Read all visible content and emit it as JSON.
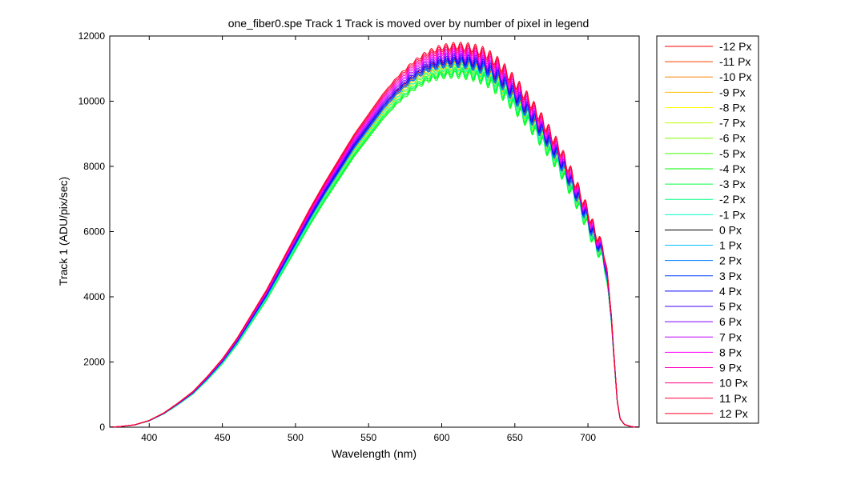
{
  "chart_data": {
    "type": "line",
    "title": "one_fiber0.spe   Track 1     Track is moved over by number of pixel in legend",
    "xlabel": "Wavelength (nm)",
    "ylabel": "Track 1 (ADU/pix/sec)",
    "xlim": [
      373,
      735
    ],
    "ylim": [
      0,
      12000
    ],
    "xticks": [
      400,
      450,
      500,
      550,
      600,
      650,
      700
    ],
    "yticks": [
      0,
      2000,
      4000,
      6000,
      8000,
      10000,
      12000
    ],
    "grid": false,
    "legend_position": "outside-right",
    "base_profile": {
      "x": [
        373,
        380,
        390,
        400,
        410,
        420,
        430,
        440,
        450,
        460,
        470,
        480,
        490,
        500,
        510,
        520,
        530,
        540,
        550,
        560,
        570,
        580,
        590,
        600,
        610,
        620,
        630,
        640,
        650,
        660,
        670,
        680,
        690,
        700,
        705,
        710,
        713,
        716,
        718,
        720,
        722,
        725,
        730,
        735
      ],
      "y": [
        0,
        20,
        70,
        200,
        420,
        720,
        1050,
        1500,
        2000,
        2600,
        3300,
        4000,
        4800,
        5600,
        6400,
        7150,
        7850,
        8550,
        9150,
        9750,
        10250,
        10650,
        10950,
        11100,
        11150,
        11100,
        10950,
        10600,
        10100,
        9550,
        8900,
        8200,
        7300,
        6300,
        5700,
        5300,
        4600,
        3300,
        2000,
        800,
        250,
        80,
        15,
        0
      ]
    },
    "series": [
      {
        "name": "-12 Px",
        "color": "#ff0000",
        "scale": 1.01
      },
      {
        "name": "-11 Px",
        "color": "#ff4000",
        "scale": 1.005
      },
      {
        "name": "-10 Px",
        "color": "#ff8000",
        "scale": 1.0
      },
      {
        "name": "-9 Px",
        "color": "#ffbf00",
        "scale": 0.995
      },
      {
        "name": "-8 Px",
        "color": "#ffff00",
        "scale": 0.99
      },
      {
        "name": "-7 Px",
        "color": "#bfff00",
        "scale": 0.985
      },
      {
        "name": "-6 Px",
        "color": "#80ff00",
        "scale": 0.98
      },
      {
        "name": "-5 Px",
        "color": "#40ff00",
        "scale": 0.975
      },
      {
        "name": "-4 Px",
        "color": "#00ff00",
        "scale": 0.97
      },
      {
        "name": "-3 Px",
        "color": "#00ff40",
        "scale": 0.975
      },
      {
        "name": "-2 Px",
        "color": "#00ff80",
        "scale": 0.98
      },
      {
        "name": "-1 Px",
        "color": "#00ffbf",
        "scale": 0.99
      },
      {
        "name": "0 Px",
        "color": "#000000",
        "scale": 1.0
      },
      {
        "name": "1 Px",
        "color": "#00bfff",
        "scale": 1.0
      },
      {
        "name": "2 Px",
        "color": "#0080ff",
        "scale": 1.0
      },
      {
        "name": "3 Px",
        "color": "#0040ff",
        "scale": 1.005
      },
      {
        "name": "4 Px",
        "color": "#0000ff",
        "scale": 1.01
      },
      {
        "name": "5 Px",
        "color": "#4000ff",
        "scale": 1.015
      },
      {
        "name": "6 Px",
        "color": "#8000ff",
        "scale": 1.02
      },
      {
        "name": "7 Px",
        "color": "#bf00ff",
        "scale": 1.025
      },
      {
        "name": "8 Px",
        "color": "#ff00ff",
        "scale": 1.03
      },
      {
        "name": "9 Px",
        "color": "#ff00bf",
        "scale": 1.035
      },
      {
        "name": "10 Px",
        "color": "#ff0080",
        "scale": 1.04
      },
      {
        "name": "11 Px",
        "color": "#ff0040",
        "scale": 1.045
      },
      {
        "name": "12 Px",
        "color": "#ff0020",
        "scale": 1.05
      }
    ]
  }
}
